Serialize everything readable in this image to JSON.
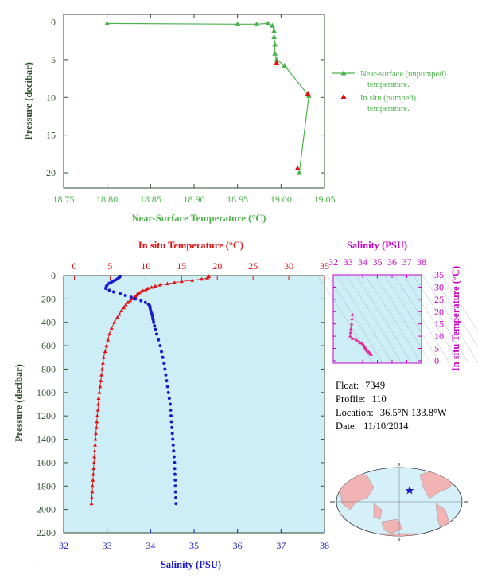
{
  "colors": {
    "green": "#4cb34c",
    "red": "#e01010",
    "blue": "#1a1acc",
    "magenta": "#cc00cc",
    "pink": "#e0309a",
    "axis": "#2f4f2f",
    "panel_bg": "#cdeef6"
  },
  "chart_data": [
    {
      "type": "line",
      "xlabel": "Near-Surface Temperature (°C)",
      "ylabel": "Pressure (decibar)",
      "xlim": [
        18.75,
        19.05
      ],
      "ylim": [
        22,
        -1
      ],
      "xticks": [
        "18.75",
        "18.80",
        "18.85",
        "18.90",
        "18.95",
        "19.00",
        "19.05"
      ],
      "yticks": [
        "0",
        "5",
        "10",
        "15",
        "20"
      ],
      "series": [
        {
          "name": "Near-surface (unpumped) temperature.",
          "marker": "triangle",
          "line": true,
          "x": [
            18.8,
            18.95,
            18.972,
            18.985,
            18.99,
            18.992,
            18.992,
            18.993,
            18.993,
            18.995,
            19.004,
            19.032,
            19.021
          ],
          "y": [
            0.2,
            0.3,
            0.3,
            0.2,
            0.5,
            1.2,
            2.0,
            3.0,
            4.2,
            5.0,
            5.8,
            9.8,
            20.0
          ]
        },
        {
          "name": "In situ (pumped) temperature.",
          "marker": "triangle",
          "line": false,
          "x": [
            18.995,
            19.031,
            19.019
          ],
          "y": [
            5.4,
            9.5,
            19.4
          ]
        }
      ],
      "legend": [
        {
          "label_l1": "Near-surface (unpumped)",
          "label_l2": "temperature."
        },
        {
          "label_l1": "In situ (pumped)",
          "label_l2": "temperature."
        }
      ]
    },
    {
      "type": "line",
      "x_top_label": "In situ Temperature (°C)",
      "x_bottom_label": "Salinity (PSU)",
      "ylabel": "Pressure (decibar)",
      "temp_lim": [
        -1.5,
        35
      ],
      "sal_lim": [
        32,
        38
      ],
      "ylim": [
        2200,
        0
      ],
      "temp_ticks": [
        "0",
        "5",
        "10",
        "15",
        "20",
        "25",
        "30",
        "35"
      ],
      "sal_ticks": [
        "32",
        "33",
        "34",
        "35",
        "36",
        "37",
        "38"
      ],
      "yticks": [
        "0",
        "200",
        "400",
        "600",
        "800",
        "1000",
        "1200",
        "1400",
        "1600",
        "1800",
        "2000",
        "2200"
      ],
      "temperature": {
        "p": [
          5,
          10,
          20,
          30,
          40,
          50,
          60,
          70,
          80,
          90,
          100,
          110,
          120,
          130,
          140,
          150,
          160,
          170,
          180,
          190,
          200,
          215,
          230,
          250,
          275,
          300,
          330,
          360,
          400,
          450,
          500,
          550,
          600,
          650,
          700,
          750,
          800,
          850,
          900,
          950,
          1000,
          1050,
          1100,
          1150,
          1200,
          1250,
          1300,
          1350,
          1400,
          1450,
          1500,
          1550,
          1600,
          1650,
          1700,
          1750,
          1800,
          1850,
          1900,
          1950
        ],
        "t": [
          18.8,
          18.8,
          18.6,
          17.8,
          16.5,
          15.0,
          14.0,
          13.0,
          12.0,
          11.3,
          10.8,
          10.3,
          10.0,
          9.6,
          9.3,
          9.0,
          8.8,
          8.7,
          8.5,
          8.3,
          8.1,
          7.8,
          7.5,
          7.2,
          6.9,
          6.6,
          6.3,
          6.0,
          5.6,
          5.2,
          4.9,
          4.7,
          4.5,
          4.3,
          4.1,
          4.0,
          3.9,
          3.8,
          3.7,
          3.6,
          3.5,
          3.4,
          3.35,
          3.3,
          3.2,
          3.15,
          3.1,
          3.0,
          2.95,
          2.9,
          2.85,
          2.8,
          2.75,
          2.7,
          2.65,
          2.6,
          2.55,
          2.5,
          2.45,
          2.4
        ]
      },
      "salinity": {
        "p": [
          5,
          15,
          25,
          35,
          45,
          55,
          65,
          80,
          95,
          110,
          125,
          140,
          155,
          170,
          185,
          200,
          215,
          230,
          245,
          260,
          280,
          300,
          320,
          340,
          360,
          380,
          400,
          430,
          460,
          500,
          550,
          600,
          650,
          700,
          750,
          800,
          850,
          900,
          950,
          1000,
          1050,
          1100,
          1150,
          1200,
          1250,
          1300,
          1350,
          1400,
          1450,
          1500,
          1550,
          1600,
          1650,
          1700,
          1750,
          1800,
          1850,
          1900,
          1950
        ],
        "s": [
          33.3,
          33.28,
          33.25,
          33.2,
          33.15,
          33.1,
          33.05,
          33.0,
          32.98,
          32.97,
          33.05,
          33.15,
          33.3,
          33.42,
          33.55,
          33.65,
          33.78,
          33.88,
          33.95,
          33.98,
          33.99,
          34.0,
          34.02,
          34.04,
          34.05,
          34.06,
          34.07,
          34.09,
          34.11,
          34.14,
          34.18,
          34.22,
          34.25,
          34.28,
          34.31,
          34.33,
          34.35,
          34.37,
          34.39,
          34.41,
          34.43,
          34.45,
          34.46,
          34.47,
          34.48,
          34.49,
          34.5,
          34.51,
          34.52,
          34.53,
          34.54,
          34.55,
          34.555,
          34.56,
          34.565,
          34.57,
          34.575,
          34.58,
          34.585
        ]
      }
    },
    {
      "type": "scatter",
      "xlabel": "Salinity (PSU)",
      "ylabel": "In situ Temperature (°C)",
      "xlim": [
        32,
        38
      ],
      "ylim": [
        -1,
        35
      ],
      "xticks": [
        "32",
        "33",
        "34",
        "35",
        "36",
        "37",
        "38"
      ],
      "yticks": [
        "0",
        "5",
        "10",
        "15",
        "20",
        "25",
        "30",
        "35"
      ],
      "points": {
        "s": [
          33.3,
          33.28,
          33.25,
          33.2,
          33.18,
          33.15,
          33.3,
          33.55,
          33.65,
          33.8,
          33.9,
          34.0,
          34.05,
          34.1,
          34.14,
          34.18,
          34.22,
          34.26,
          34.3,
          34.35,
          34.4,
          34.45,
          34.5,
          34.55,
          34.58
        ],
        "t": [
          18.8,
          17.0,
          15.0,
          13.0,
          11.5,
          10.0,
          9.0,
          8.6,
          8.0,
          7.5,
          7.2,
          6.9,
          6.5,
          6.0,
          5.6,
          5.2,
          4.9,
          4.5,
          4.2,
          3.9,
          3.6,
          3.3,
          3.0,
          2.7,
          2.5
        ]
      }
    }
  ],
  "info": {
    "float_label": "Float:",
    "float_value": "7349",
    "profile_label": "Profile:",
    "profile_value": "110",
    "location_label": "Location:",
    "location_value": "36.5°N  133.8°W",
    "date_label": "Date:",
    "date_value": "11/10/2014"
  },
  "map": {
    "marker": "float-position-star"
  }
}
